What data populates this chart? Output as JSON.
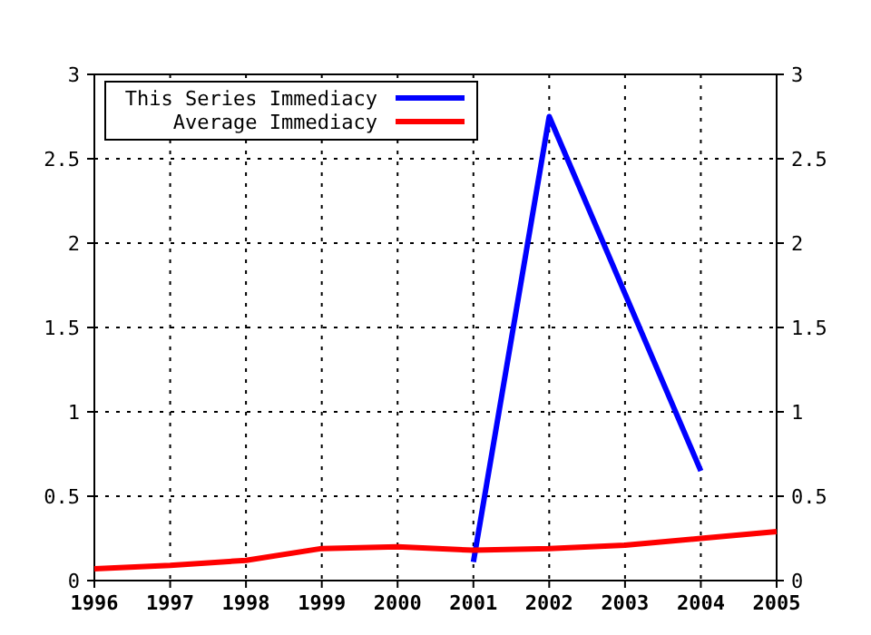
{
  "chart_data": {
    "type": "line",
    "x": [
      1996,
      1997,
      1998,
      1999,
      2000,
      2001,
      2002,
      2003,
      2004,
      2005
    ],
    "series": [
      {
        "name": "This Series Immediacy",
        "color": "#0000ff",
        "values": [
          null,
          null,
          null,
          null,
          null,
          0.11,
          2.75,
          null,
          0.65,
          null
        ]
      },
      {
        "name": "Average Immediacy",
        "color": "#ff0000",
        "values": [
          0.07,
          0.09,
          0.12,
          0.19,
          0.2,
          0.18,
          0.19,
          0.21,
          0.25,
          0.29
        ]
      }
    ],
    "xlim": [
      1996,
      2005
    ],
    "xticks": [
      1996,
      1997,
      1998,
      1999,
      2000,
      2001,
      2002,
      2003,
      2004,
      2005
    ],
    "ylim": [
      0,
      3
    ],
    "yticks": [
      0,
      0.5,
      1,
      1.5,
      2,
      2.5,
      3
    ],
    "y2lim": [
      0,
      3
    ],
    "y2ticks": [
      0,
      0.5,
      1,
      1.5,
      2,
      2.5,
      3
    ],
    "grid": true,
    "legend": "top left",
    "line_style": "solid",
    "marker": "none"
  }
}
